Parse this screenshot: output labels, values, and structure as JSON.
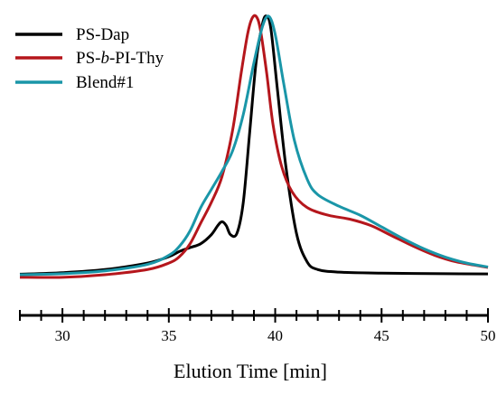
{
  "chart_data": {
    "type": "line",
    "xlabel": "Elution Time [min]",
    "ylabel": "",
    "xlim": [
      28,
      50
    ],
    "x_ticks": [
      30,
      35,
      40,
      45,
      50
    ],
    "x_tick_labels": [
      "30",
      "35",
      "40",
      "45",
      "50"
    ],
    "y_axis_visible": false,
    "legend_position": "top-left",
    "grid": false,
    "series": [
      {
        "name": "PS-Dap",
        "color": "#000000",
        "points": [
          [
            28,
            0.002
          ],
          [
            30,
            0.008
          ],
          [
            32,
            0.02
          ],
          [
            34,
            0.045
          ],
          [
            35,
            0.07
          ],
          [
            35.5,
            0.09
          ],
          [
            36,
            0.105
          ],
          [
            36.5,
            0.12
          ],
          [
            37,
            0.155
          ],
          [
            37.3,
            0.19
          ],
          [
            37.5,
            0.205
          ],
          [
            37.7,
            0.19
          ],
          [
            37.9,
            0.155
          ],
          [
            38.2,
            0.16
          ],
          [
            38.5,
            0.28
          ],
          [
            38.8,
            0.55
          ],
          [
            39.1,
            0.82
          ],
          [
            39.4,
            0.97
          ],
          [
            39.6,
            1.0
          ],
          [
            39.8,
            0.95
          ],
          [
            40.1,
            0.72
          ],
          [
            40.5,
            0.42
          ],
          [
            41,
            0.16
          ],
          [
            41.5,
            0.05
          ],
          [
            42,
            0.02
          ],
          [
            43,
            0.01
          ],
          [
            45,
            0.006
          ],
          [
            48,
            0.004
          ],
          [
            50,
            0.003
          ]
        ]
      },
      {
        "name": "PS-b-PI-Thy",
        "color": "#b5161c",
        "points": [
          [
            28,
            -0.01
          ],
          [
            30,
            -0.01
          ],
          [
            32,
            0.0
          ],
          [
            34,
            0.02
          ],
          [
            35,
            0.045
          ],
          [
            35.5,
            0.07
          ],
          [
            36,
            0.12
          ],
          [
            36.5,
            0.2
          ],
          [
            37,
            0.28
          ],
          [
            37.5,
            0.38
          ],
          [
            38,
            0.56
          ],
          [
            38.4,
            0.78
          ],
          [
            38.7,
            0.93
          ],
          [
            38.9,
            0.99
          ],
          [
            39.1,
            1.0
          ],
          [
            39.3,
            0.95
          ],
          [
            39.6,
            0.78
          ],
          [
            39.9,
            0.58
          ],
          [
            40.3,
            0.42
          ],
          [
            40.8,
            0.32
          ],
          [
            41.5,
            0.26
          ],
          [
            42.5,
            0.23
          ],
          [
            43.5,
            0.215
          ],
          [
            44.5,
            0.19
          ],
          [
            45.5,
            0.15
          ],
          [
            46.5,
            0.11
          ],
          [
            47.5,
            0.075
          ],
          [
            48.5,
            0.05
          ],
          [
            50,
            0.028
          ]
        ]
      },
      {
        "name": "Blend#1",
        "color": "#1a96a8",
        "points": [
          [
            28,
            0.0
          ],
          [
            30,
            0.004
          ],
          [
            32,
            0.015
          ],
          [
            34,
            0.04
          ],
          [
            35,
            0.075
          ],
          [
            35.5,
            0.11
          ],
          [
            36,
            0.17
          ],
          [
            36.5,
            0.26
          ],
          [
            37,
            0.33
          ],
          [
            37.5,
            0.4
          ],
          [
            38,
            0.48
          ],
          [
            38.5,
            0.62
          ],
          [
            39,
            0.82
          ],
          [
            39.4,
            0.96
          ],
          [
            39.7,
            1.0
          ],
          [
            40,
            0.93
          ],
          [
            40.4,
            0.74
          ],
          [
            40.9,
            0.52
          ],
          [
            41.5,
            0.37
          ],
          [
            42,
            0.31
          ],
          [
            43,
            0.265
          ],
          [
            44,
            0.23
          ],
          [
            45,
            0.185
          ],
          [
            46,
            0.14
          ],
          [
            47,
            0.1
          ],
          [
            48,
            0.068
          ],
          [
            49,
            0.045
          ],
          [
            50,
            0.03
          ]
        ]
      }
    ]
  }
}
